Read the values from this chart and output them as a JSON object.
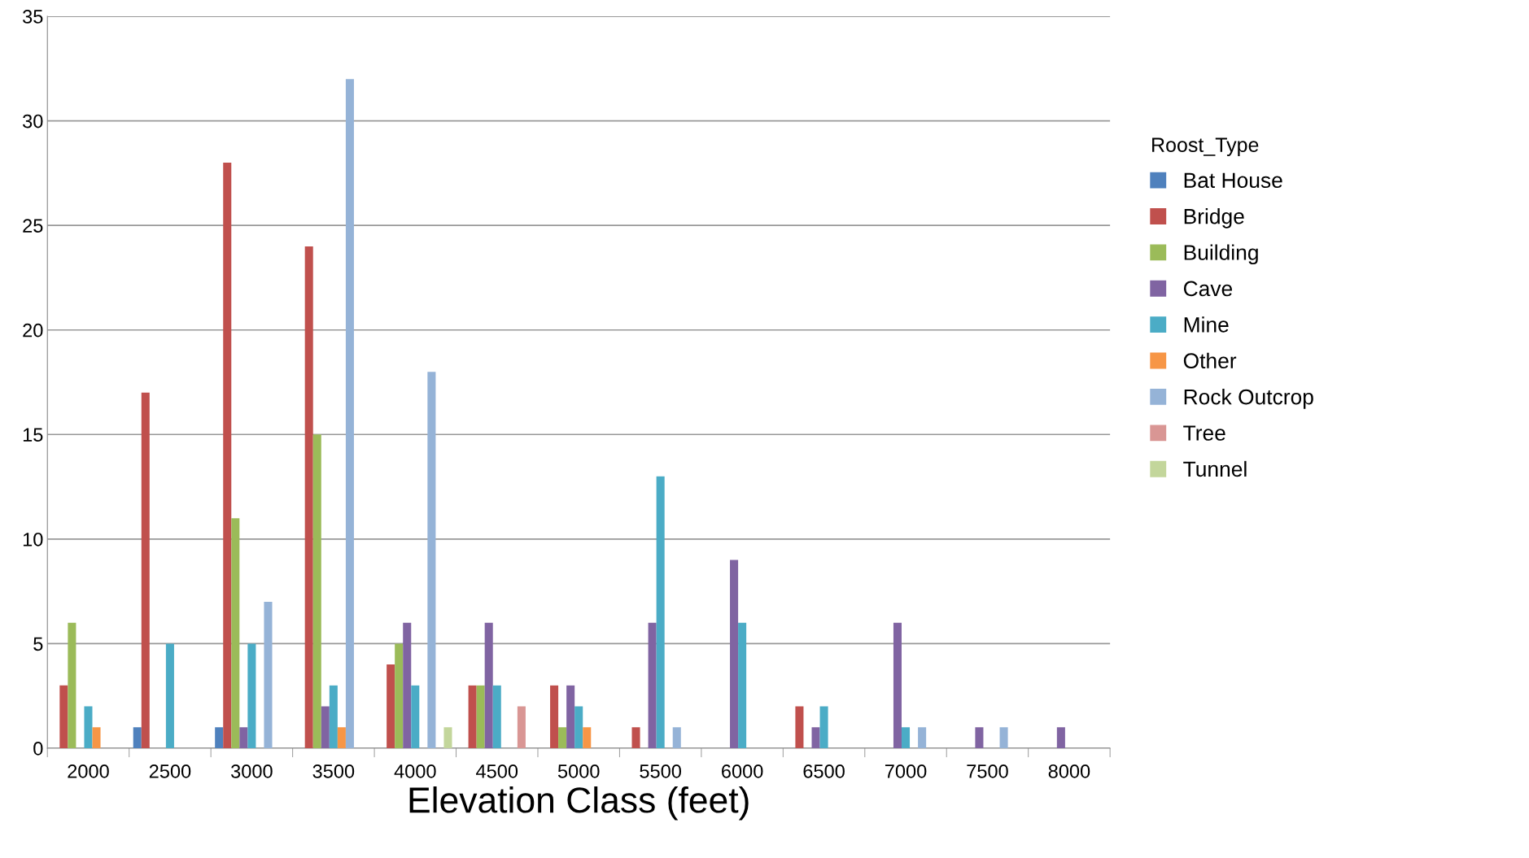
{
  "chart_data": {
    "type": "bar",
    "xlabel": "Elevation Class (feet)",
    "legend_title": "Roost_Type",
    "legend": "right",
    "grid": "y",
    "categories": [
      "2000",
      "2500",
      "3000",
      "3500",
      "4000",
      "4500",
      "5000",
      "5500",
      "6000",
      "6500",
      "7000",
      "7500",
      "8000"
    ],
    "ylim": [
      0,
      35
    ],
    "yticks": [
      0,
      5,
      10,
      15,
      20,
      25,
      30,
      35
    ],
    "series": [
      {
        "name": "Bat House",
        "color": "#4f81bd",
        "values": [
          null,
          1,
          1,
          null,
          null,
          null,
          null,
          null,
          null,
          null,
          null,
          null,
          null
        ]
      },
      {
        "name": "Bridge",
        "color": "#c0504d",
        "values": [
          3,
          17,
          28,
          24,
          4,
          3,
          3,
          1,
          null,
          2,
          null,
          null,
          null
        ]
      },
      {
        "name": "Building",
        "color": "#9bbb59",
        "values": [
          6,
          null,
          11,
          15,
          5,
          3,
          1,
          null,
          null,
          null,
          null,
          null,
          null
        ]
      },
      {
        "name": "Cave",
        "color": "#8064a2",
        "values": [
          null,
          null,
          1,
          2,
          6,
          6,
          3,
          6,
          9,
          1,
          6,
          1,
          1
        ]
      },
      {
        "name": "Mine",
        "color": "#4bacc6",
        "values": [
          2,
          5,
          5,
          3,
          3,
          3,
          2,
          13,
          6,
          2,
          1,
          null,
          null
        ]
      },
      {
        "name": "Other",
        "color": "#f79646",
        "values": [
          1,
          null,
          null,
          1,
          null,
          null,
          1,
          null,
          null,
          null,
          null,
          null,
          null
        ]
      },
      {
        "name": "Rock Outcrop",
        "color": "#95b3d7",
        "values": [
          null,
          null,
          7,
          32,
          18,
          null,
          null,
          1,
          null,
          null,
          1,
          1,
          null
        ]
      },
      {
        "name": "Tree",
        "color": "#d99694",
        "values": [
          null,
          null,
          null,
          null,
          null,
          2,
          null,
          null,
          null,
          null,
          null,
          null,
          null
        ]
      },
      {
        "name": "Tunnel",
        "color": "#c3d69b",
        "values": [
          null,
          null,
          null,
          null,
          1,
          null,
          null,
          null,
          null,
          null,
          null,
          null,
          null
        ]
      }
    ]
  }
}
